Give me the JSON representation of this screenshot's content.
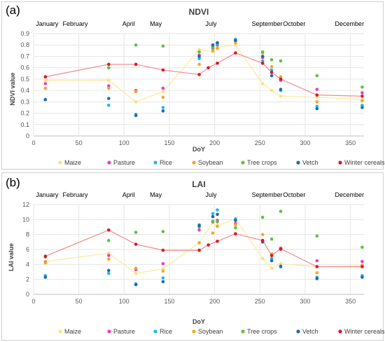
{
  "months": [
    {
      "label": "January",
      "doy": 15
    },
    {
      "label": "February",
      "doy": 46
    },
    {
      "label": "April",
      "doy": 105
    },
    {
      "label": "May",
      "doy": 135
    },
    {
      "label": "July",
      "doy": 196
    },
    {
      "label": "September",
      "doy": 258
    },
    {
      "label": "October",
      "doy": 288
    },
    {
      "label": "December",
      "doy": 349
    }
  ],
  "colors": {
    "Maize": "#ffe07a",
    "Pasture": "#e83ec6",
    "Rice": "#2cb5e8",
    "Soybean": "#f5a623",
    "Tree crops": "#5cc43b",
    "Vetch": "#1b6cb5",
    "Winter cereals": "#e8131f"
  },
  "chart_data": [
    {
      "type": "scatter",
      "panel": "(a)",
      "title": "NDVI",
      "xlabel": "DoY",
      "ylabel": "NDVI value",
      "xlim": [
        0,
        365
      ],
      "ylim": [
        0,
        0.9
      ],
      "xticks": [
        0,
        50,
        100,
        150,
        200,
        250,
        300,
        350
      ],
      "yticks": [
        0,
        0.1,
        0.2,
        0.3,
        0.4,
        0.5,
        0.6,
        0.7,
        0.8,
        0.9
      ],
      "grid": true,
      "legend": "bottom",
      "lines": [
        "Maize",
        "Winter cereals"
      ],
      "series": [
        {
          "name": "Maize",
          "x": [
            13,
            83,
            113,
            143,
            183,
            198,
            203,
            223,
            253,
            263,
            273,
            313,
            363
          ],
          "y": [
            0.49,
            0.49,
            0.3,
            0.39,
            0.76,
            0.74,
            0.78,
            0.8,
            0.46,
            0.4,
            0.35,
            0.34,
            0.32
          ]
        },
        {
          "name": "Pasture",
          "x": [
            13,
            83,
            113,
            143,
            183,
            198,
            203,
            223,
            253,
            263,
            273,
            313,
            363
          ],
          "y": [
            0.46,
            0.44,
            0.4,
            0.42,
            0.71,
            0.77,
            0.8,
            0.84,
            0.69,
            0.56,
            0.49,
            0.41,
            0.38
          ]
        },
        {
          "name": "Rice",
          "x": [
            13,
            83,
            113,
            143,
            183,
            198,
            203,
            223,
            253,
            263,
            273,
            313,
            363
          ],
          "y": [
            0.32,
            0.27,
            0.19,
            0.25,
            0.68,
            0.79,
            0.81,
            0.85,
            0.66,
            0.58,
            0.4,
            0.26,
            0.27
          ]
        },
        {
          "name": "Soybean",
          "x": [
            13,
            83,
            113,
            143,
            183,
            198,
            203,
            223,
            253,
            263,
            273,
            313,
            363
          ],
          "y": [
            0.42,
            0.42,
            0.39,
            0.34,
            0.63,
            0.75,
            0.77,
            0.82,
            0.73,
            0.61,
            0.52,
            0.3,
            0.31
          ]
        },
        {
          "name": "Tree crops",
          "x": [
            13,
            83,
            113,
            143,
            183,
            198,
            203,
            223,
            253,
            263,
            273,
            313,
            363
          ],
          "y": [
            0.52,
            0.6,
            0.8,
            0.79,
            0.74,
            0.78,
            0.82,
            0.84,
            0.74,
            0.67,
            0.66,
            0.53,
            0.43
          ]
        },
        {
          "name": "Vetch",
          "x": [
            13,
            83,
            113,
            143,
            183,
            198,
            203,
            223,
            253,
            263,
            273,
            313,
            363
          ],
          "y": [
            0.32,
            0.33,
            0.18,
            0.22,
            0.7,
            0.8,
            0.82,
            0.84,
            0.7,
            0.53,
            0.41,
            0.24,
            0.25
          ]
        },
        {
          "name": "Winter cereals",
          "x": [
            13,
            83,
            113,
            143,
            183,
            193,
            203,
            223,
            253,
            263,
            273,
            313,
            363
          ],
          "y": [
            0.52,
            0.63,
            0.63,
            0.58,
            0.54,
            0.6,
            0.64,
            0.73,
            0.64,
            0.56,
            0.5,
            0.36,
            0.35
          ]
        }
      ]
    },
    {
      "type": "scatter",
      "panel": "(b)",
      "title": "LAI",
      "xlabel": "DoY",
      "ylabel": "LAI value",
      "xlim": [
        0,
        365
      ],
      "ylim": [
        0,
        12
      ],
      "xticks": [
        0,
        50,
        100,
        150,
        200,
        250,
        300,
        350
      ],
      "yticks": [
        0,
        2,
        4,
        6,
        8,
        10,
        12
      ],
      "grid": true,
      "legend": "bottom",
      "lines": [
        "Maize",
        "Winter cereals"
      ],
      "series": [
        {
          "name": "Maize",
          "x": [
            13,
            83,
            113,
            143,
            183,
            198,
            203,
            223,
            253,
            263,
            273,
            313,
            363
          ],
          "y": [
            4.4,
            5.5,
            2.8,
            3.4,
            6.9,
            9.6,
            9.2,
            10.1,
            4.8,
            3.5,
            4.1,
            3.7,
            3.8
          ]
        },
        {
          "name": "Pasture",
          "x": [
            13,
            83,
            113,
            143,
            183,
            198,
            203,
            223,
            253,
            263,
            273,
            313,
            363
          ],
          "y": [
            4.3,
            5.2,
            3.3,
            4.1,
            8.6,
            9.7,
            9.9,
            9.5,
            7.2,
            5.3,
            6.0,
            4.5,
            4.4
          ]
        },
        {
          "name": "Rice",
          "x": [
            13,
            83,
            113,
            143,
            183,
            198,
            203,
            223,
            253,
            263,
            273,
            313,
            363
          ],
          "y": [
            2.5,
            2.8,
            1.4,
            2.2,
            9.3,
            10.8,
            11.3,
            10.1,
            7.2,
            4.8,
            3.8,
            2.3,
            2.5
          ]
        },
        {
          "name": "Soybean",
          "x": [
            13,
            83,
            113,
            143,
            183,
            198,
            203,
            223,
            253,
            263,
            273,
            313,
            363
          ],
          "y": [
            4.2,
            4.7,
            3.5,
            3.1,
            6.9,
            8.2,
            9.1,
            9.3,
            8.0,
            5.4,
            6.2,
            2.9,
            3.9
          ]
        },
        {
          "name": "Tree crops",
          "x": [
            13,
            83,
            113,
            143,
            183,
            198,
            203,
            223,
            253,
            263,
            273,
            313,
            363
          ],
          "y": [
            5.0,
            7.2,
            8.3,
            8.4,
            9.0,
            9.8,
            9.7,
            8.9,
            10.3,
            7.4,
            11.1,
            7.8,
            6.3
          ]
        },
        {
          "name": "Vetch",
          "x": [
            13,
            83,
            113,
            143,
            183,
            198,
            203,
            223,
            253,
            263,
            273,
            313,
            363
          ],
          "y": [
            2.3,
            3.2,
            1.3,
            1.7,
            9.2,
            10.4,
            10.7,
            9.9,
            7.0,
            4.5,
            3.7,
            2.1,
            2.3
          ]
        },
        {
          "name": "Winter cereals",
          "x": [
            13,
            83,
            113,
            143,
            183,
            193,
            203,
            223,
            253,
            263,
            273,
            313,
            363
          ],
          "y": [
            5.1,
            8.6,
            6.7,
            5.9,
            5.9,
            6.6,
            7.1,
            8.1,
            7.2,
            5.2,
            6.1,
            3.7,
            3.7
          ]
        }
      ]
    }
  ]
}
